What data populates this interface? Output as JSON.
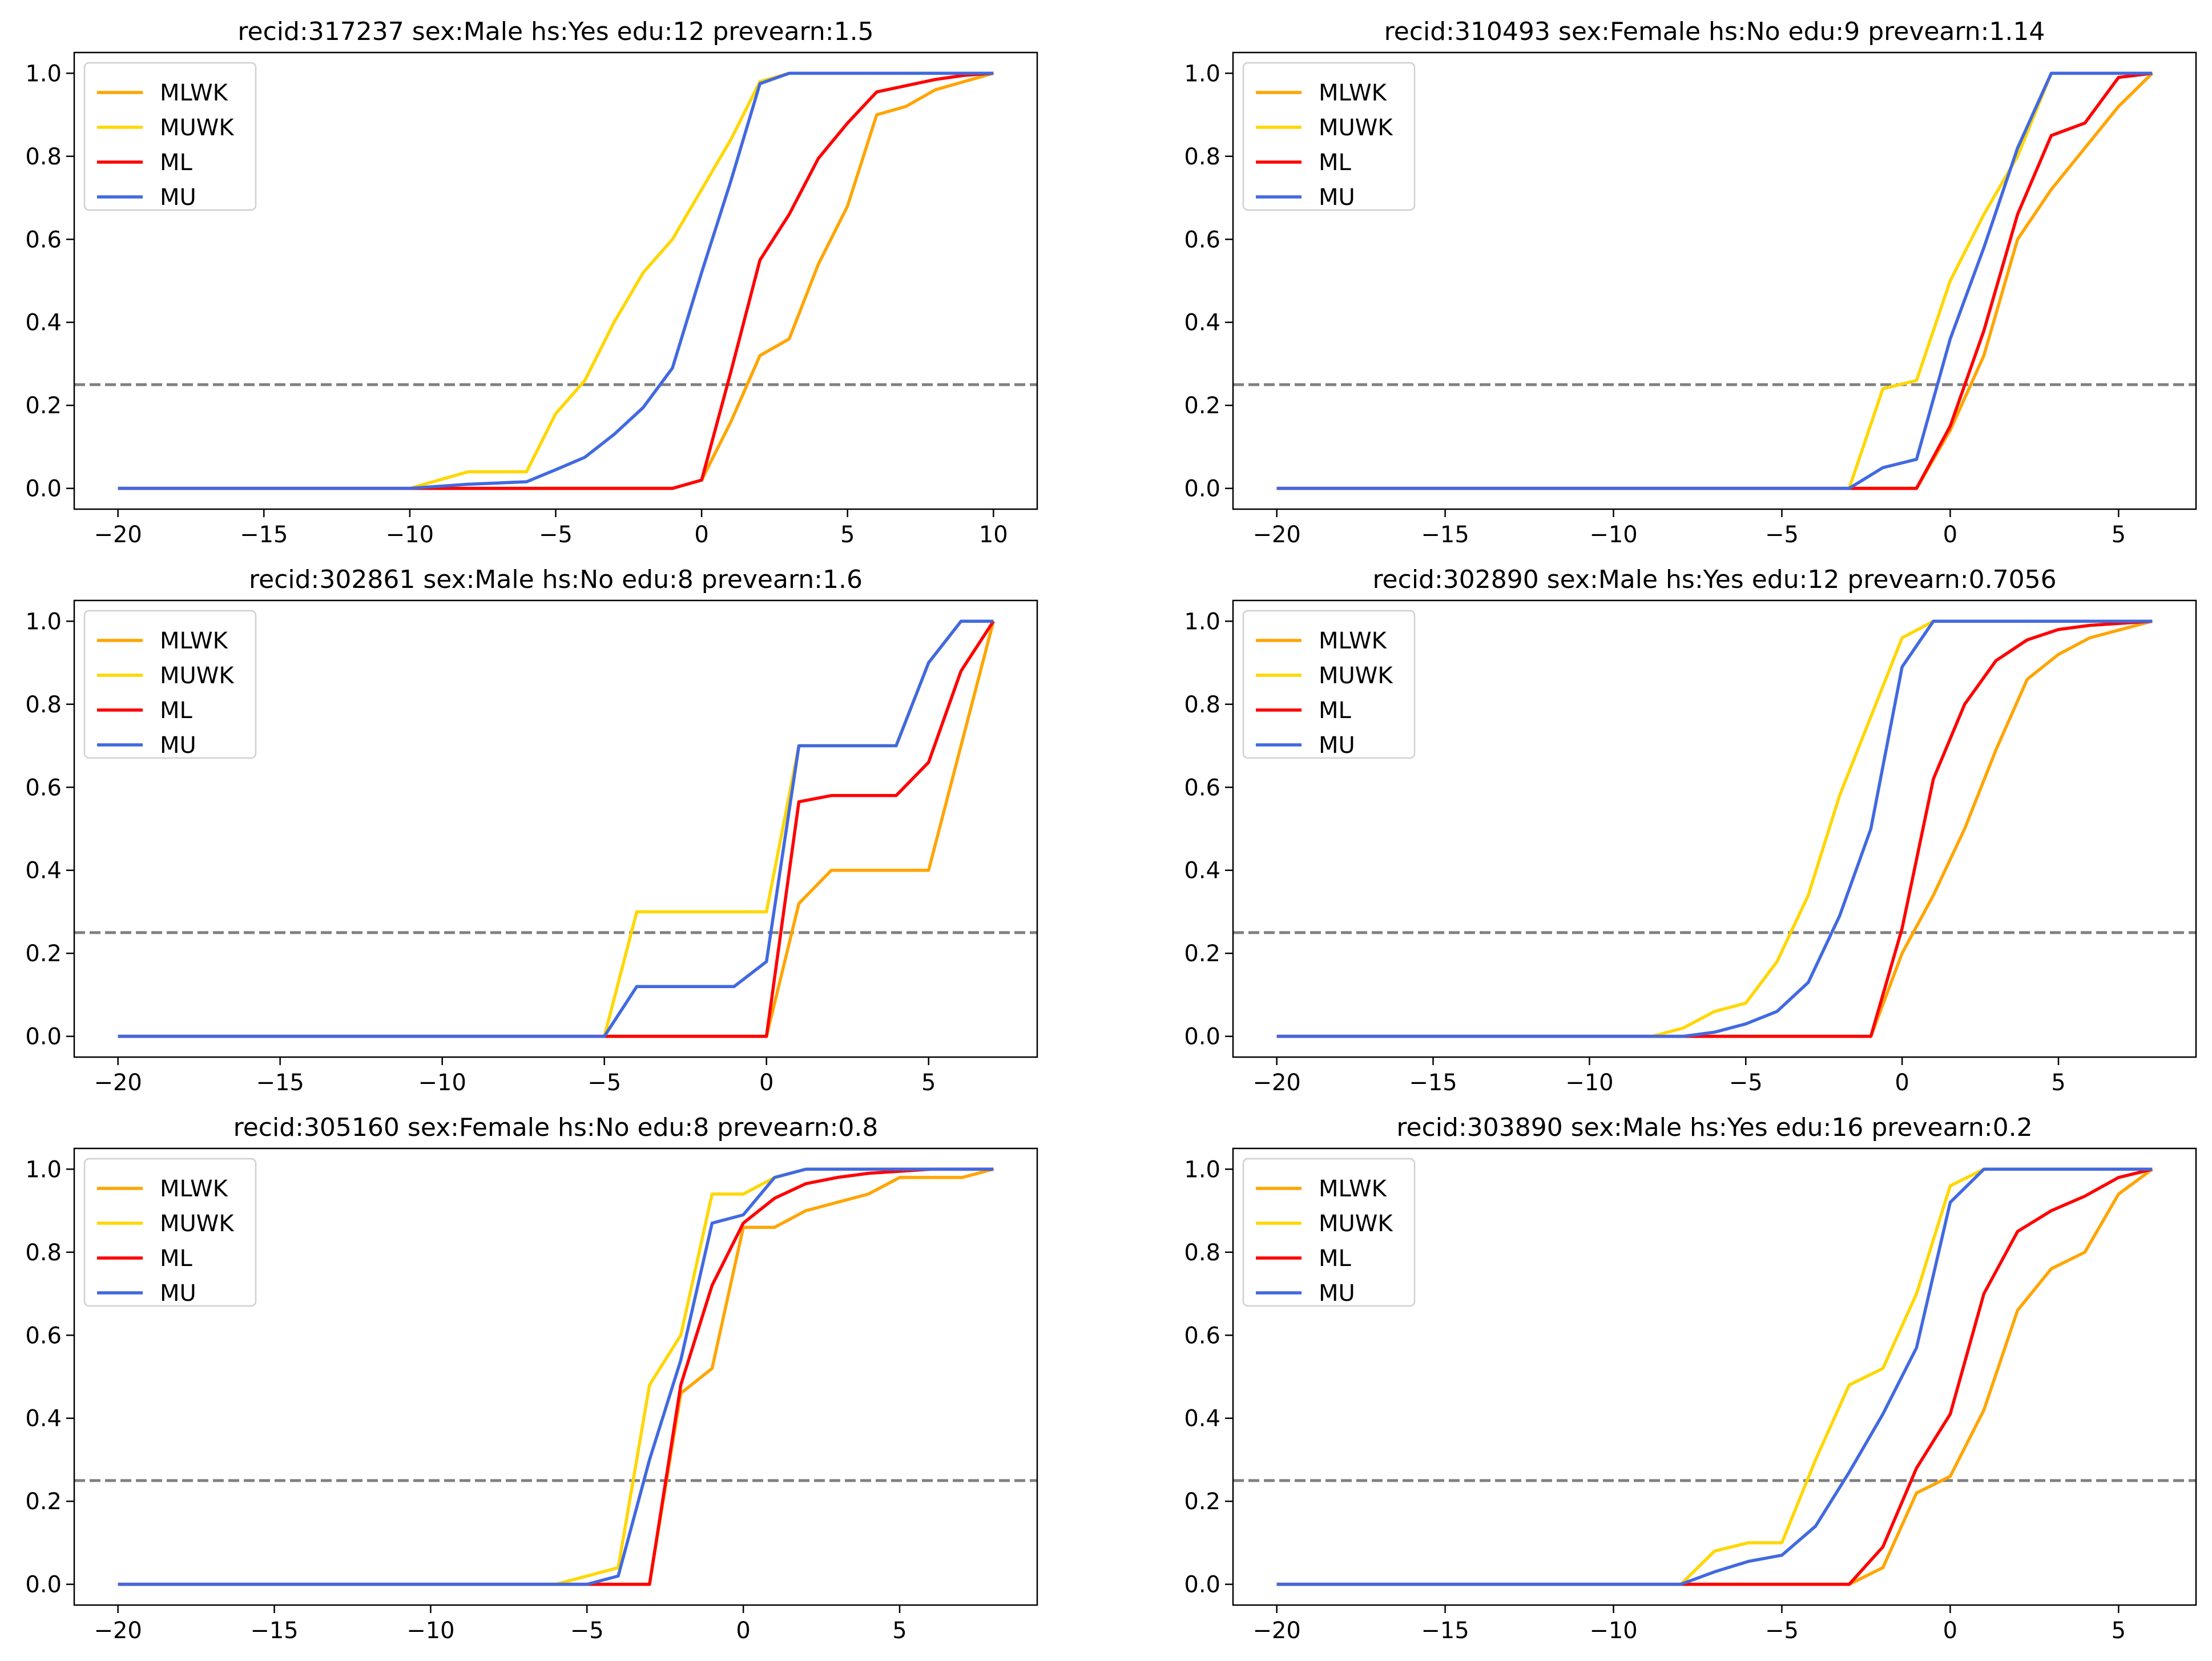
{
  "figure": {
    "background": "#ffffff"
  },
  "legend_labels": [
    "MLWK",
    "MUWK",
    "ML",
    "MU"
  ],
  "series_colors": {
    "MLWK": "#ffa500",
    "MUWK": "#ffd700",
    "ML": "#ff0000",
    "MU": "#4169e1"
  },
  "reference_line": {
    "y": 0.25,
    "color": "#808080",
    "style": "dashed"
  },
  "chart_data": [
    {
      "type": "line",
      "title": "recid:317237 sex:Male hs:Yes edu:12 prevearn:1.5",
      "xlim": [
        -21.5,
        11.5
      ],
      "ylim": [
        -0.05,
        1.05
      ],
      "xticks": [
        -20,
        -15,
        -10,
        -5,
        0,
        5,
        10
      ],
      "yticks": [
        0.0,
        0.2,
        0.4,
        0.6,
        0.8,
        1.0
      ],
      "legend_position": "upper-left",
      "series": [
        {
          "name": "MLWK",
          "x": [
            -20,
            -19,
            -18,
            -17,
            -16,
            -15,
            -14,
            -13,
            -12,
            -11,
            -10,
            -9,
            -8,
            -7,
            -6,
            -5,
            -4,
            -3,
            -2,
            -1,
            0,
            1,
            2,
            3,
            4,
            5,
            6,
            7,
            8,
            9,
            10
          ],
          "y": [
            0,
            0,
            0,
            0,
            0,
            0,
            0,
            0,
            0,
            0,
            0,
            0,
            0,
            0,
            0,
            0,
            0,
            0,
            0,
            0,
            0.02,
            0.16,
            0.32,
            0.36,
            0.54,
            0.68,
            0.9,
            0.92,
            0.96,
            0.98,
            1.0
          ]
        },
        {
          "name": "MUWK",
          "x": [
            -20,
            -19,
            -18,
            -17,
            -16,
            -15,
            -14,
            -13,
            -12,
            -11,
            -10,
            -9,
            -8,
            -7,
            -6,
            -5,
            -4,
            -3,
            -2,
            -1,
            0,
            1,
            2,
            3,
            4,
            5,
            6,
            7,
            8,
            9,
            10
          ],
          "y": [
            0,
            0,
            0,
            0,
            0,
            0,
            0,
            0,
            0,
            0,
            0,
            0.02,
            0.04,
            0.04,
            0.04,
            0.18,
            0.26,
            0.4,
            0.52,
            0.6,
            0.72,
            0.84,
            0.98,
            1.0,
            1.0,
            1.0,
            1.0,
            1.0,
            1.0,
            1.0,
            1.0
          ]
        },
        {
          "name": "ML",
          "x": [
            -20,
            -19,
            -18,
            -17,
            -16,
            -15,
            -14,
            -13,
            -12,
            -11,
            -10,
            -9,
            -8,
            -7,
            -6,
            -5,
            -4,
            -3,
            -2,
            -1,
            0,
            1,
            2,
            3,
            4,
            5,
            6,
            7,
            8,
            9,
            10
          ],
          "y": [
            0,
            0,
            0,
            0,
            0,
            0,
            0,
            0,
            0,
            0,
            0,
            0,
            0,
            0,
            0,
            0,
            0,
            0,
            0,
            0,
            0.02,
            0.28,
            0.55,
            0.66,
            0.795,
            0.88,
            0.955,
            0.97,
            0.985,
            0.995,
            1.0
          ]
        },
        {
          "name": "MU",
          "x": [
            -20,
            -19,
            -18,
            -17,
            -16,
            -15,
            -14,
            -13,
            -12,
            -11,
            -10,
            -9,
            -8,
            -7,
            -6,
            -5,
            -4,
            -3,
            -2,
            -1,
            0,
            1,
            2,
            3,
            4,
            5,
            6,
            7,
            8,
            9,
            10
          ],
          "y": [
            0,
            0,
            0,
            0,
            0,
            0,
            0,
            0,
            0,
            0,
            0,
            0.005,
            0.01,
            0.013,
            0.016,
            0.045,
            0.075,
            0.13,
            0.195,
            0.29,
            0.52,
            0.74,
            0.975,
            1.0,
            1.0,
            1.0,
            1.0,
            1.0,
            1.0,
            1.0,
            1.0
          ]
        }
      ]
    },
    {
      "type": "line",
      "title": "recid:310493 sex:Female hs:No edu:9 prevearn:1.14",
      "xlim": [
        -21.3,
        7.3
      ],
      "ylim": [
        -0.05,
        1.05
      ],
      "xticks": [
        -20,
        -15,
        -10,
        -5,
        0,
        5
      ],
      "yticks": [
        0.0,
        0.2,
        0.4,
        0.6,
        0.8,
        1.0
      ],
      "legend_position": "upper-left",
      "series": [
        {
          "name": "MLWK",
          "x": [
            -20,
            -3,
            -2,
            -1,
            0,
            1,
            2,
            3,
            4,
            5,
            6
          ],
          "y": [
            0,
            0,
            0,
            0,
            0.14,
            0.32,
            0.6,
            0.72,
            0.82,
            0.92,
            1.0
          ]
        },
        {
          "name": "MUWK",
          "x": [
            -20,
            -3,
            -2,
            -1,
            0,
            1,
            2,
            3,
            4,
            5,
            6
          ],
          "y": [
            0,
            0,
            0.24,
            0.26,
            0.5,
            0.66,
            0.8,
            1.0,
            1.0,
            1.0,
            1.0
          ]
        },
        {
          "name": "ML",
          "x": [
            -20,
            -3,
            -2,
            -1,
            0,
            1,
            2,
            3,
            4,
            5,
            6
          ],
          "y": [
            0,
            0,
            0,
            0,
            0.15,
            0.38,
            0.66,
            0.85,
            0.88,
            0.99,
            1.0
          ]
        },
        {
          "name": "MU",
          "x": [
            -20,
            -3,
            -2,
            -1,
            0,
            1,
            2,
            3,
            4,
            5,
            6
          ],
          "y": [
            0,
            0,
            0.05,
            0.07,
            0.36,
            0.58,
            0.82,
            1.0,
            1.0,
            1.0,
            1.0
          ]
        }
      ]
    },
    {
      "type": "line",
      "title": "recid:302861 sex:Male hs:No edu:8 prevearn:1.6",
      "xlim": [
        -21.35,
        8.35
      ],
      "ylim": [
        -0.05,
        1.05
      ],
      "xticks": [
        -20,
        -15,
        -10,
        -5,
        0,
        5
      ],
      "yticks": [
        0.0,
        0.2,
        0.4,
        0.6,
        0.8,
        1.0
      ],
      "legend_position": "upper-left",
      "series": [
        {
          "name": "MLWK",
          "x": [
            -20,
            -5,
            -4,
            -3,
            -2,
            -1,
            0,
            1,
            2,
            3,
            4,
            5,
            6,
            7
          ],
          "y": [
            0,
            0,
            0,
            0,
            0,
            0,
            0,
            0.32,
            0.4,
            0.4,
            0.4,
            0.4,
            0.7,
            1.0
          ]
        },
        {
          "name": "MUWK",
          "x": [
            -20,
            -5,
            -4,
            -3,
            -2,
            -1,
            0,
            1,
            2,
            3,
            4,
            5,
            6,
            7
          ],
          "y": [
            0,
            0,
            0.3,
            0.3,
            0.3,
            0.3,
            0.3,
            0.7,
            0.7,
            0.7,
            0.7,
            0.9,
            1.0,
            1.0
          ]
        },
        {
          "name": "ML",
          "x": [
            -20,
            -5,
            -4,
            -3,
            -2,
            -1,
            0,
            1,
            2,
            3,
            4,
            5,
            6,
            7
          ],
          "y": [
            0,
            0,
            0,
            0,
            0,
            0,
            0,
            0.565,
            0.58,
            0.58,
            0.58,
            0.66,
            0.88,
            1.0
          ]
        },
        {
          "name": "MU",
          "x": [
            -20,
            -5,
            -4,
            -3,
            -2,
            -1,
            0,
            1,
            2,
            3,
            4,
            5,
            6,
            7
          ],
          "y": [
            0,
            0,
            0.12,
            0.12,
            0.12,
            0.12,
            0.18,
            0.7,
            0.7,
            0.7,
            0.7,
            0.9,
            1.0,
            1.0
          ]
        }
      ]
    },
    {
      "type": "line",
      "title": "recid:302890 sex:Male hs:Yes edu:12 prevearn:0.7056",
      "xlim": [
        -21.4,
        9.4
      ],
      "ylim": [
        -0.05,
        1.05
      ],
      "xticks": [
        -20,
        -15,
        -10,
        -5,
        0,
        5
      ],
      "yticks": [
        0.0,
        0.2,
        0.4,
        0.6,
        0.8,
        1.0
      ],
      "legend_position": "upper-left",
      "series": [
        {
          "name": "MLWK",
          "x": [
            -20,
            -8,
            -7,
            -6,
            -5,
            -4,
            -3,
            -2,
            -1,
            0,
            1,
            2,
            3,
            4,
            5,
            6,
            7,
            8
          ],
          "y": [
            0,
            0,
            0,
            0,
            0,
            0,
            0,
            0,
            0,
            0.2,
            0.34,
            0.5,
            0.69,
            0.86,
            0.92,
            0.96,
            0.98,
            1.0
          ]
        },
        {
          "name": "MUWK",
          "x": [
            -20,
            -8,
            -7,
            -6,
            -5,
            -4,
            -3,
            -2,
            -1,
            0,
            1,
            2,
            3,
            4,
            5,
            6,
            7,
            8
          ],
          "y": [
            0,
            0,
            0.02,
            0.06,
            0.08,
            0.18,
            0.34,
            0.58,
            0.77,
            0.96,
            1.0,
            1.0,
            1.0,
            1.0,
            1.0,
            1.0,
            1.0,
            1.0
          ]
        },
        {
          "name": "ML",
          "x": [
            -20,
            -8,
            -7,
            -6,
            -5,
            -4,
            -3,
            -2,
            -1,
            0,
            1,
            2,
            3,
            4,
            5,
            6,
            7,
            8
          ],
          "y": [
            0,
            0,
            0,
            0,
            0,
            0,
            0,
            0,
            0,
            0.26,
            0.62,
            0.8,
            0.905,
            0.955,
            0.98,
            0.99,
            0.995,
            1.0
          ]
        },
        {
          "name": "MU",
          "x": [
            -20,
            -8,
            -7,
            -6,
            -5,
            -4,
            -3,
            -2,
            -1,
            0,
            1,
            2,
            3,
            4,
            5,
            6,
            7,
            8
          ],
          "y": [
            0,
            0,
            0,
            0.01,
            0.03,
            0.06,
            0.13,
            0.29,
            0.5,
            0.89,
            1.0,
            1.0,
            1.0,
            1.0,
            1.0,
            1.0,
            1.0,
            1.0
          ]
        }
      ]
    },
    {
      "type": "line",
      "title": "recid:305160 sex:Female hs:No edu:8 prevearn:0.8",
      "xlim": [
        -21.4,
        9.4
      ],
      "ylim": [
        -0.05,
        1.05
      ],
      "xticks": [
        -20,
        -15,
        -10,
        -5,
        0,
        5
      ],
      "yticks": [
        0.0,
        0.2,
        0.4,
        0.6,
        0.8,
        1.0
      ],
      "legend_position": "upper-left",
      "series": [
        {
          "name": "MLWK",
          "x": [
            -20,
            -6,
            -5,
            -4,
            -3,
            -2,
            -1,
            0,
            1,
            2,
            3,
            4,
            5,
            6,
            7,
            8
          ],
          "y": [
            0,
            0,
            0,
            0,
            0,
            0.46,
            0.52,
            0.86,
            0.86,
            0.9,
            0.92,
            0.94,
            0.98,
            0.98,
            0.98,
            1.0
          ]
        },
        {
          "name": "MUWK",
          "x": [
            -20,
            -6,
            -5,
            -4,
            -3,
            -2,
            -1,
            0,
            1,
            2,
            3,
            4,
            5,
            6,
            7,
            8
          ],
          "y": [
            0,
            0,
            0.02,
            0.04,
            0.48,
            0.6,
            0.94,
            0.94,
            0.98,
            1.0,
            1.0,
            1.0,
            1.0,
            1.0,
            1.0,
            1.0
          ]
        },
        {
          "name": "ML",
          "x": [
            -20,
            -6,
            -5,
            -4,
            -3,
            -2,
            -1,
            0,
            1,
            2,
            3,
            4,
            5,
            6,
            7,
            8
          ],
          "y": [
            0,
            0,
            0,
            0,
            0,
            0.48,
            0.72,
            0.87,
            0.93,
            0.965,
            0.98,
            0.99,
            0.995,
            1.0,
            1.0,
            1.0
          ]
        },
        {
          "name": "MU",
          "x": [
            -20,
            -6,
            -5,
            -4,
            -3,
            -2,
            -1,
            0,
            1,
            2,
            3,
            4,
            5,
            6,
            7,
            8
          ],
          "y": [
            0,
            0,
            0,
            0.02,
            0.3,
            0.54,
            0.87,
            0.89,
            0.98,
            1.0,
            1.0,
            1.0,
            1.0,
            1.0,
            1.0,
            1.0
          ]
        }
      ]
    },
    {
      "type": "line",
      "title": "recid:303890 sex:Male hs:Yes edu:16 prevearn:0.2",
      "xlim": [
        -21.3,
        7.3
      ],
      "ylim": [
        -0.05,
        1.05
      ],
      "xticks": [
        -20,
        -15,
        -10,
        -5,
        0,
        5
      ],
      "yticks": [
        0.0,
        0.2,
        0.4,
        0.6,
        0.8,
        1.0
      ],
      "legend_position": "upper-left",
      "series": [
        {
          "name": "MLWK",
          "x": [
            -20,
            -8,
            -7,
            -6,
            -5,
            -4,
            -3,
            -2,
            -1,
            0,
            1,
            2,
            3,
            4,
            5,
            6
          ],
          "y": [
            0,
            0,
            0,
            0,
            0,
            0,
            0,
            0.04,
            0.22,
            0.26,
            0.42,
            0.66,
            0.76,
            0.8,
            0.94,
            1.0
          ]
        },
        {
          "name": "MUWK",
          "x": [
            -20,
            -8,
            -7,
            -6,
            -5,
            -4,
            -3,
            -2,
            -1,
            0,
            1,
            2,
            3,
            4,
            5,
            6
          ],
          "y": [
            0,
            0,
            0.08,
            0.1,
            0.1,
            0.3,
            0.48,
            0.52,
            0.7,
            0.96,
            1.0,
            1.0,
            1.0,
            1.0,
            1.0,
            1.0
          ]
        },
        {
          "name": "ML",
          "x": [
            -20,
            -8,
            -7,
            -6,
            -5,
            -4,
            -3,
            -2,
            -1,
            0,
            1,
            2,
            3,
            4,
            5,
            6
          ],
          "y": [
            0,
            0,
            0,
            0,
            0,
            0,
            0,
            0.09,
            0.28,
            0.41,
            0.7,
            0.85,
            0.9,
            0.935,
            0.98,
            1.0
          ]
        },
        {
          "name": "MU",
          "x": [
            -20,
            -8,
            -7,
            -6,
            -5,
            -4,
            -3,
            -2,
            -1,
            0,
            1,
            2,
            3,
            4,
            5,
            6
          ],
          "y": [
            0,
            0,
            0.03,
            0.055,
            0.07,
            0.14,
            0.27,
            0.41,
            0.57,
            0.92,
            1.0,
            1.0,
            1.0,
            1.0,
            1.0,
            1.0
          ]
        }
      ]
    }
  ]
}
